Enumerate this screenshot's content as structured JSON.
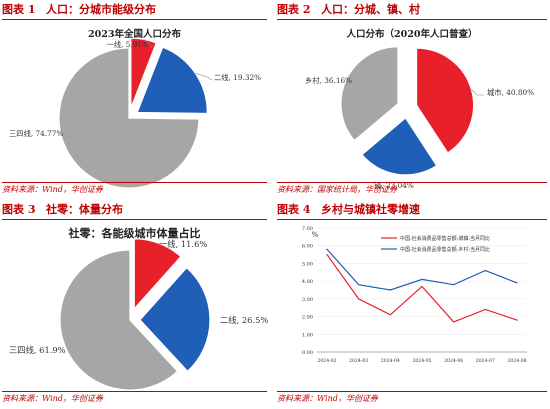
{
  "colors": {
    "accent": "#c00000",
    "red": "#e8202a",
    "blue": "#1f5fb8",
    "gray": "#a6a6a6"
  },
  "fig1": {
    "number": "图表 1",
    "title": "人口：分城市能级分布",
    "source": "资料来源：Wind，华创证券"
  },
  "fig2": {
    "number": "图表 2",
    "title": "人口：分城、镇、村",
    "source": "资料来源：国家统计局，华创证券"
  },
  "fig3": {
    "number": "图表 3",
    "title": "社零：体量分布",
    "source": "资料来源：Wind，华创证券"
  },
  "fig4": {
    "number": "图表 4",
    "title": "乡村与城镇社零增速",
    "source": "资料来源：Wind，华创证券"
  },
  "chart_data": [
    {
      "type": "pie",
      "title": "2023年全国人口分布",
      "slices": [
        {
          "label": "一线",
          "value": 5.91,
          "display": "一线, 5.91%",
          "color": "#e8202a"
        },
        {
          "label": "二线",
          "value": 19.32,
          "display": "二线, 19.32%",
          "color": "#1f5fb8"
        },
        {
          "label": "三四线",
          "value": 74.77,
          "display": "三四线, 74.77%",
          "color": "#a6a6a6"
        }
      ]
    },
    {
      "type": "pie",
      "title": "人口分布（2020年人口普查）",
      "slices": [
        {
          "label": "城市",
          "value": 40.8,
          "display": "城市, 40.80%",
          "color": "#e8202a"
        },
        {
          "label": "镇",
          "value": 23.04,
          "display": "镇, 23.04%",
          "color": "#1f5fb8"
        },
        {
          "label": "乡村",
          "value": 36.16,
          "display": "乡村, 36.16%",
          "color": "#a6a6a6"
        }
      ]
    },
    {
      "type": "pie",
      "title": "社零：各能级城市体量占比",
      "slices": [
        {
          "label": "一线",
          "value": 11.6,
          "display": "一线, 11.6%",
          "color": "#e8202a"
        },
        {
          "label": "二线",
          "value": 26.5,
          "display": "二线, 26.5%",
          "color": "#1f5fb8"
        },
        {
          "label": "三四线",
          "value": 61.9,
          "display": "三四线, 61.9%",
          "color": "#a6a6a6"
        }
      ]
    },
    {
      "type": "line",
      "ylabel": "%",
      "ylim": [
        0,
        7
      ],
      "yticks": [
        "0.00",
        "1.00",
        "2.00",
        "3.00",
        "4.00",
        "5.00",
        "6.00",
        "7.00"
      ],
      "categories": [
        "2024-02",
        "2024-03",
        "2024-04",
        "2024-05",
        "2024-06",
        "2024-07",
        "2024-08"
      ],
      "series": [
        {
          "name": "中国:社会消费品零售总额:城镇:当月同比",
          "color": "#e8202a",
          "values": [
            5.5,
            3.0,
            2.1,
            3.7,
            1.7,
            2.4,
            1.8
          ]
        },
        {
          "name": "中国:社会消费品零售总额:乡村:当月同比",
          "color": "#1f5fb8",
          "values": [
            5.8,
            3.8,
            3.5,
            4.1,
            3.8,
            4.6,
            3.9
          ]
        }
      ]
    }
  ]
}
